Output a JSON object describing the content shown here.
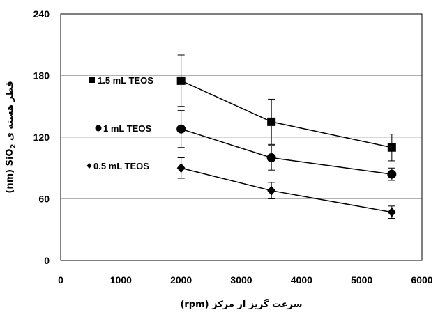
{
  "chart_data": {
    "type": "line",
    "xlabel": "سرعت گریز از مرکز (rpm)",
    "ylabel": {
      "prefix": "(nm) SiO",
      "subscript": "2",
      "suffix": " قطر هسته ی"
    },
    "xlim": [
      0,
      6000
    ],
    "ylim": [
      0,
      240
    ],
    "xticks": [
      0,
      1000,
      2000,
      3000,
      4000,
      5000,
      6000
    ],
    "yticks": [
      0,
      60,
      120,
      180,
      240
    ],
    "grid": "horizontal",
    "x": [
      2000,
      3500,
      5500
    ],
    "series": [
      {
        "name": "1.5 mL TEOS",
        "marker": "square",
        "values": [
          175,
          135,
          110
        ],
        "error": [
          [
            150,
            200
          ],
          [
            113,
            157
          ],
          [
            97,
            123
          ]
        ]
      },
      {
        "name": "1 mL TEOS",
        "marker": "circle",
        "values": [
          128,
          100,
          84
        ],
        "error": [
          [
            110,
            146
          ],
          [
            88,
            112
          ],
          [
            78,
            90
          ]
        ]
      },
      {
        "name": "0.5 mL TEOS",
        "marker": "diamond",
        "values": [
          90,
          68,
          47
        ],
        "error": [
          [
            80,
            100
          ],
          [
            60,
            76
          ],
          [
            41,
            53
          ]
        ]
      }
    ],
    "colors": {
      "line": "#000000",
      "grid": "#b0b0b0",
      "frame": "#000000"
    }
  }
}
